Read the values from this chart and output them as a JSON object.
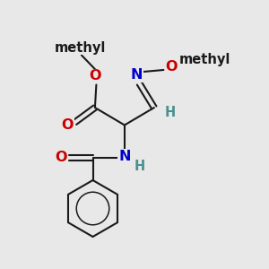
{
  "background_color": "#e8e8e8",
  "bond_color": "#1a1a1a",
  "oxygen_color": "#cc0000",
  "nitrogen_color": "#0000cc",
  "hydrogen_color": "#4a9090",
  "figsize": [
    3.0,
    3.0
  ],
  "dpi": 100,
  "xlim": [
    0,
    10
  ],
  "ylim": [
    0,
    10
  ]
}
